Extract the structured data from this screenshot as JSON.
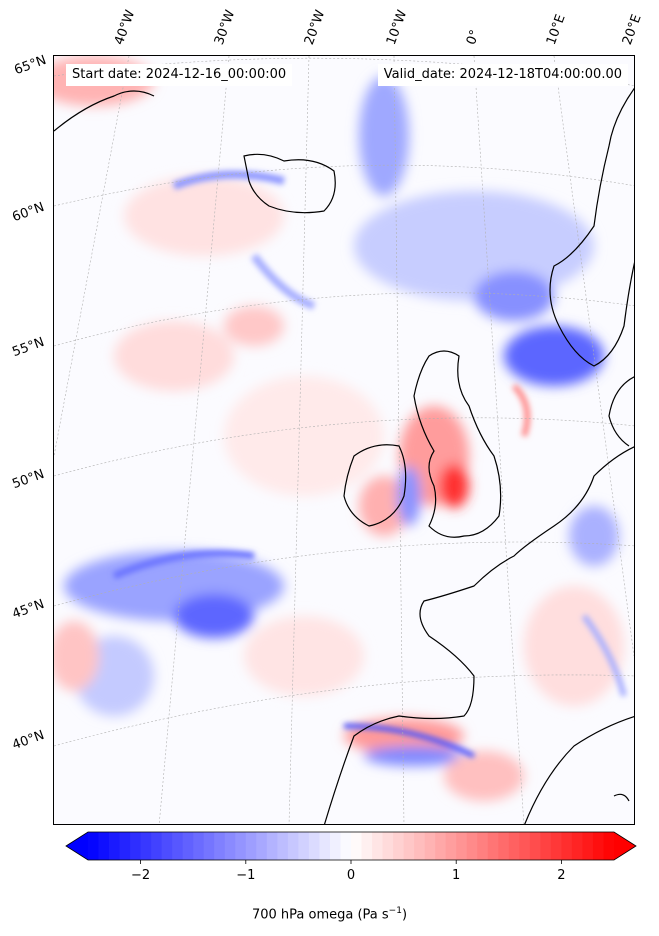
{
  "header": {
    "start_date": "Start date: 2024-12-16_00:00:00",
    "valid_date": "Valid_date: 2024-12-18T04:00:00.00"
  },
  "longitude_labels": [
    "40°W",
    "30°W",
    "20°W",
    "10°W",
    "0°",
    "10°E",
    "20°E"
  ],
  "latitude_labels": [
    "65°N",
    "60°N",
    "55°N",
    "50°N",
    "45°N",
    "40°N"
  ],
  "colorbar": {
    "label_prefix": "700 hPa omega (Pa s",
    "label_exponent": "−1",
    "label_suffix": ")",
    "min": -2.5,
    "max": 2.5,
    "ticks": [
      {
        "value": -2,
        "label": "−2"
      },
      {
        "value": -1,
        "label": "−1"
      },
      {
        "value": 0,
        "label": "0"
      },
      {
        "value": 1,
        "label": "1"
      },
      {
        "value": 2,
        "label": "2"
      }
    ],
    "neg_color": "#0000ff",
    "pos_color": "#ff0000",
    "mid_color": "#ffffff",
    "extend": "both",
    "levels": 50
  },
  "map": {
    "projection": "lambert-conformal",
    "extent_text": "North Atlantic and Europe",
    "coastline_color": "#000000",
    "gridline_color": "#aaaaaa"
  }
}
